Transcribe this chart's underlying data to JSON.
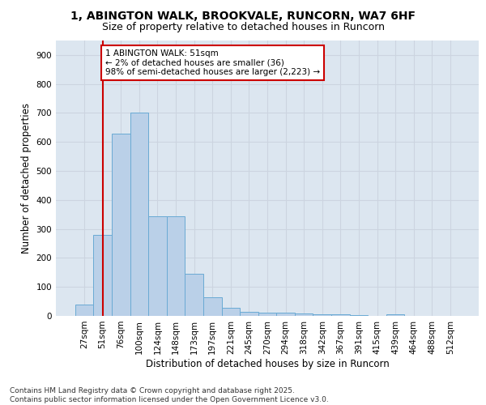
{
  "title_line1": "1, ABINGTON WALK, BROOKVALE, RUNCORN, WA7 6HF",
  "title_line2": "Size of property relative to detached houses in Runcorn",
  "xlabel": "Distribution of detached houses by size in Runcorn",
  "ylabel": "Number of detached properties",
  "categories": [
    "27sqm",
    "51sqm",
    "76sqm",
    "100sqm",
    "124sqm",
    "148sqm",
    "173sqm",
    "197sqm",
    "221sqm",
    "245sqm",
    "270sqm",
    "294sqm",
    "318sqm",
    "342sqm",
    "367sqm",
    "391sqm",
    "415sqm",
    "439sqm",
    "464sqm",
    "488sqm",
    "512sqm"
  ],
  "values": [
    40,
    280,
    630,
    700,
    345,
    345,
    145,
    65,
    28,
    15,
    10,
    10,
    8,
    5,
    5,
    3,
    0,
    5,
    0,
    0,
    0
  ],
  "bar_color": "#bad0e8",
  "bar_edge_color": "#6aaad4",
  "vline_color": "#cc0000",
  "vline_x": 1,
  "annotation_text": "1 ABINGTON WALK: 51sqm\n← 2% of detached houses are smaller (36)\n98% of semi-detached houses are larger (2,223) →",
  "annotation_box_color": "#cc0000",
  "ylim": [
    0,
    950
  ],
  "yticks": [
    0,
    100,
    200,
    300,
    400,
    500,
    600,
    700,
    800,
    900
  ],
  "grid_color": "#ccd4e0",
  "bg_color": "#dce6f0",
  "footer_text": "Contains HM Land Registry data © Crown copyright and database right 2025.\nContains public sector information licensed under the Open Government Licence v3.0.",
  "title_fontsize": 10,
  "subtitle_fontsize": 9,
  "label_fontsize": 8.5,
  "tick_fontsize": 7.5,
  "footer_fontsize": 6.5,
  "ann_fontsize": 7.5
}
